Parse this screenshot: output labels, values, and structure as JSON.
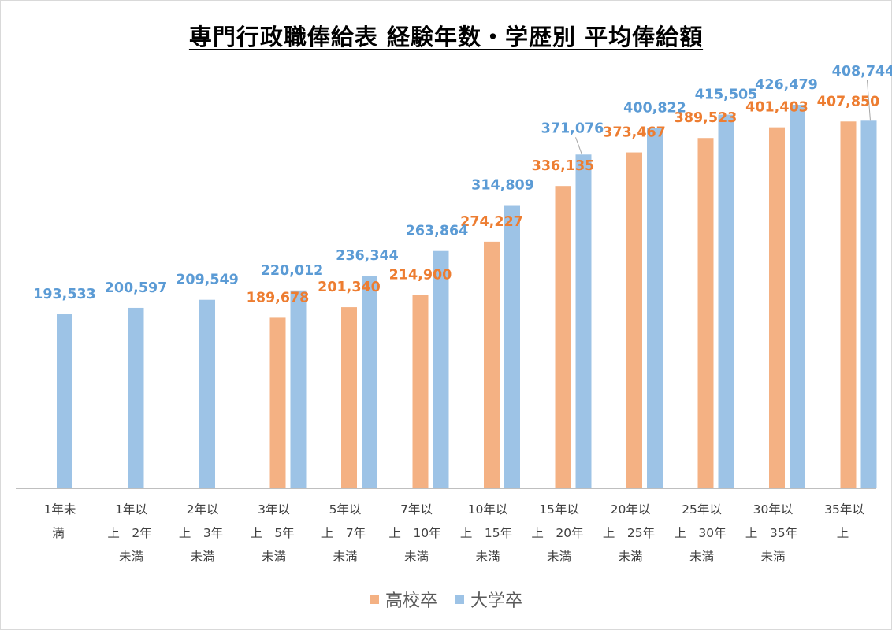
{
  "colors": {
    "high_school": "#F4B183",
    "university": "#9DC3E6",
    "hs_label": "#ED7D31",
    "uni_label": "#5B9BD5",
    "axis": "#BFBFBF"
  },
  "chart_data": {
    "type": "bar",
    "title": "専門行政職俸給表 経験年数・学歴別 平均俸給額",
    "xlabel": "",
    "ylabel": "",
    "ylim": [
      0,
      420000
    ],
    "grid": false,
    "legend_position": "bottom",
    "categories": [
      [
        "1年未",
        "満"
      ],
      [
        "1年以",
        "上　2年",
        "未満"
      ],
      [
        "2年以",
        "上　3年",
        "未満"
      ],
      [
        "3年以",
        "上　5年",
        "未満"
      ],
      [
        "5年以",
        "上　7年",
        "未満"
      ],
      [
        "7年以",
        "上　10年",
        "未満"
      ],
      [
        "10年以",
        "上　15年",
        "未満"
      ],
      [
        "15年以",
        "上　20年",
        "未満"
      ],
      [
        "20年以",
        "上　25年",
        "未満"
      ],
      [
        "25年以",
        "上　30年",
        "未満"
      ],
      [
        "30年以",
        "上　35年",
        "未満"
      ],
      [
        "35年以",
        "上"
      ]
    ],
    "series": [
      {
        "name": "高校卒",
        "values": [
          null,
          null,
          null,
          189678,
          201340,
          214900,
          274227,
          336135,
          373467,
          389523,
          401403,
          407850
        ],
        "labels": [
          "",
          "",
          "",
          "189,678",
          "201,340",
          "214,900",
          "274,227",
          "336,135",
          "373,467",
          "389,523",
          "401,403",
          "407,850"
        ]
      },
      {
        "name": "大学卒",
        "values": [
          193533,
          200597,
          209549,
          220012,
          236344,
          263864,
          314809,
          371076,
          400822,
          415505,
          426479,
          408744
        ],
        "labels": [
          "193,533",
          "200,597",
          "209,549",
          "220,012",
          "236,344",
          "263,864",
          "314,809",
          "371,076",
          "400,822",
          "415,505",
          "426,479",
          "408,744"
        ]
      }
    ]
  }
}
